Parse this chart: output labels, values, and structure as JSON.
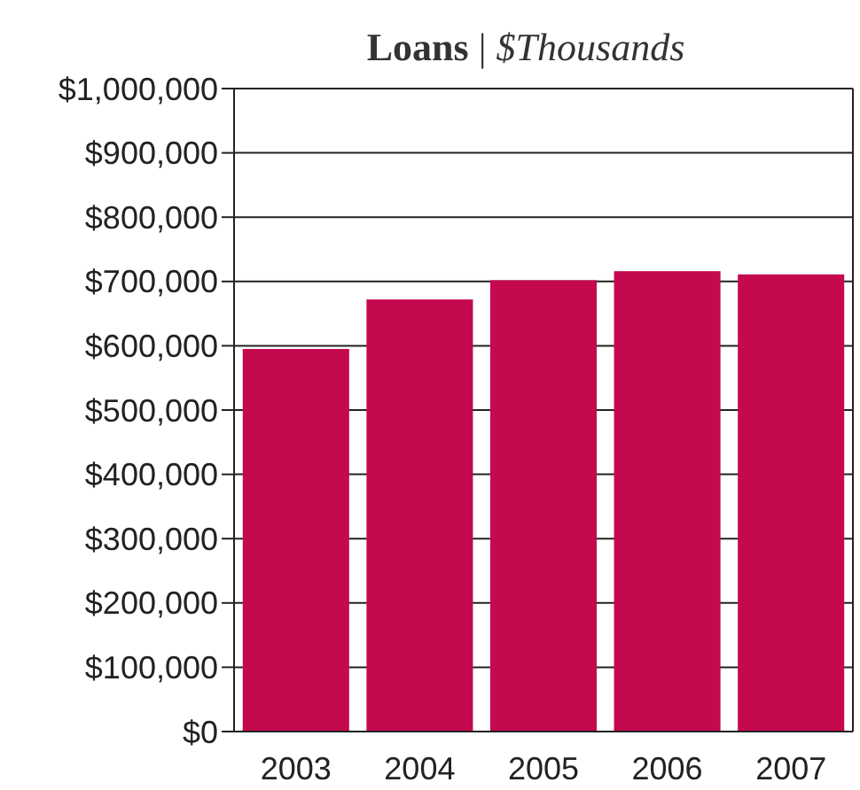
{
  "chart_data": {
    "type": "bar",
    "title": "Loans | $Thousands",
    "categories": [
      "2003",
      "2004",
      "2005",
      "2006",
      "2007"
    ],
    "values": [
      595000,
      672000,
      702000,
      716000,
      711000
    ],
    "color": "#c4094f",
    "ylim": [
      0,
      1000000
    ],
    "yticks": [
      {
        "value": 0,
        "label": "$0"
      },
      {
        "value": 100000,
        "label": "$100,000"
      },
      {
        "value": 200000,
        "label": "$200,000"
      },
      {
        "value": 300000,
        "label": "$300,000"
      },
      {
        "value": 400000,
        "label": "$400,000"
      },
      {
        "value": 500000,
        "label": "$500,000"
      },
      {
        "value": 600000,
        "label": "$600,000"
      },
      {
        "value": 700000,
        "label": "$700,000"
      },
      {
        "value": 800000,
        "label": "$800,000"
      },
      {
        "value": 900000,
        "label": "$900,000"
      },
      {
        "value": 1000000,
        "label": "$1,000,000"
      }
    ],
    "grid": "y"
  }
}
